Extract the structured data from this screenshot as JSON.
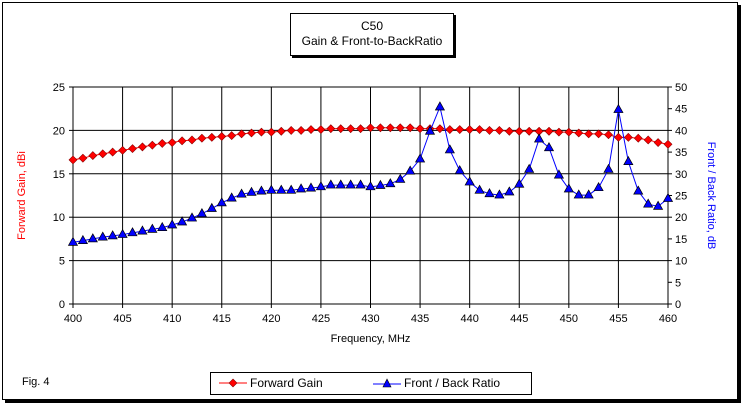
{
  "chart_data": {
    "type": "line",
    "title": "C50",
    "subtitle": "Gain & Front-to-BackRatio",
    "xlabel": "Frequency, MHz",
    "ylabel": "Forward Gain,  dBi",
    "y2label": "Front / Back Ratio,  dB",
    "xlim": [
      400,
      460
    ],
    "ylim": [
      0,
      25
    ],
    "y2lim": [
      0,
      50
    ],
    "xticks": [
      400,
      405,
      410,
      415,
      420,
      425,
      430,
      435,
      440,
      445,
      450,
      455,
      460
    ],
    "yticks": [
      0,
      5,
      10,
      15,
      20,
      25
    ],
    "y2ticks": [
      0,
      5,
      10,
      15,
      20,
      25,
      30,
      35,
      40,
      45,
      50
    ],
    "grid": true,
    "legend_position": "bottom",
    "x": [
      400,
      401,
      402,
      403,
      404,
      405,
      406,
      407,
      408,
      409,
      410,
      411,
      412,
      413,
      414,
      415,
      416,
      417,
      418,
      419,
      420,
      421,
      422,
      423,
      424,
      425,
      426,
      427,
      428,
      429,
      430,
      431,
      432,
      433,
      434,
      435,
      436,
      437,
      438,
      439,
      440,
      441,
      442,
      443,
      444,
      445,
      446,
      447,
      448,
      449,
      450,
      451,
      452,
      453,
      454,
      455,
      456,
      457,
      458,
      459,
      460
    ],
    "series": [
      {
        "name": "Forward Gain",
        "axis": "left",
        "color": "#ff0000",
        "marker": "diamond",
        "values": [
          16.6,
          16.8,
          17.1,
          17.3,
          17.5,
          17.7,
          17.9,
          18.1,
          18.3,
          18.5,
          18.6,
          18.8,
          18.9,
          19.1,
          19.2,
          19.3,
          19.4,
          19.6,
          19.7,
          19.8,
          19.8,
          19.9,
          20.0,
          20.0,
          20.1,
          20.1,
          20.2,
          20.2,
          20.2,
          20.2,
          20.3,
          20.3,
          20.3,
          20.3,
          20.3,
          20.2,
          20.2,
          20.2,
          20.1,
          20.1,
          20.1,
          20.1,
          20.0,
          20.0,
          19.9,
          19.9,
          19.9,
          19.9,
          19.9,
          19.8,
          19.8,
          19.7,
          19.6,
          19.6,
          19.5,
          19.2,
          19.2,
          19.1,
          18.9,
          18.6,
          18.4
        ]
      },
      {
        "name": "Front / Back Ratio",
        "axis": "right",
        "color": "#0000ff",
        "marker": "triangle",
        "values": [
          14.2,
          14.6,
          15.0,
          15.4,
          15.7,
          16.0,
          16.4,
          16.8,
          17.2,
          17.6,
          18.2,
          18.9,
          19.8,
          20.8,
          22.0,
          23.3,
          24.4,
          25.3,
          25.7,
          26.0,
          26.2,
          26.2,
          26.2,
          26.5,
          26.7,
          27.0,
          27.4,
          27.4,
          27.4,
          27.4,
          27.0,
          27.3,
          27.7,
          28.7,
          30.6,
          33.4,
          39.8,
          45.4,
          35.5,
          30.7,
          28.1,
          26.2,
          25.4,
          25.1,
          25.8,
          27.6,
          31.0,
          38.0,
          36.0,
          29.7,
          26.5,
          25.1,
          25.1,
          26.8,
          31.0,
          44.8,
          32.8,
          26.0,
          23.0,
          22.5,
          24.3
        ]
      }
    ]
  },
  "footer": {
    "figure_label": "Fig. 4"
  }
}
